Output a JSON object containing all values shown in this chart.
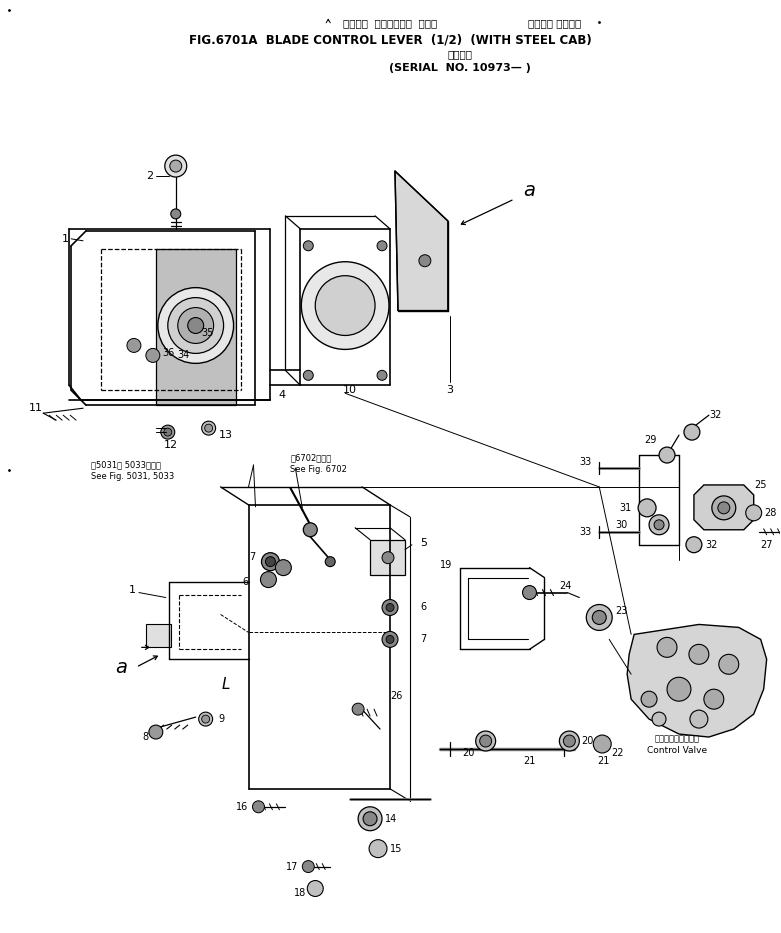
{
  "title_jp1": "ブレード  コントロール  レバー",
  "title_jp2": "スチール キャブ付",
  "title_en": "FIG.6701A  BLADE CONTROL LEVER  (1/2)  (WITH STEEL CAB)",
  "subtitle_jp": "適用号機",
  "subtitle_en": "(SERIAL  NO. 10973— )",
  "fig_note1_jp": "第5031、 5033図参照",
  "fig_note1_en": "See Fig. 5031, 5033",
  "fig_note2_jp": "第6702図参照",
  "fig_note2_en": "See Fig. 6702",
  "cv_jp": "コントロールバルブ",
  "cv_en": "Control Valve",
  "bg": "#ffffff",
  "lc": "#000000"
}
